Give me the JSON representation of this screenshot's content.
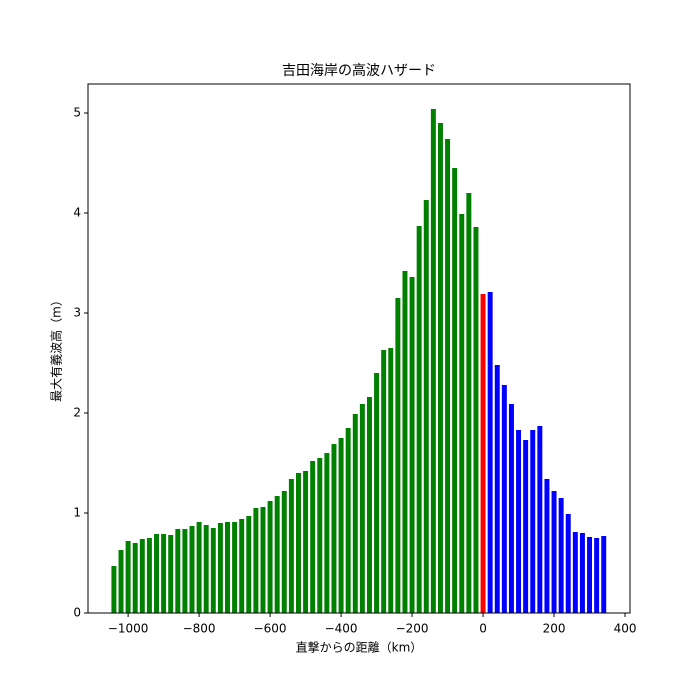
{
  "chart_data": {
    "type": "bar",
    "title": "吉田海岸の高波ハザード",
    "xlabel": "直撃からの距離（km）",
    "ylabel": "最大有義波高（m）",
    "bar_width": 14,
    "series": [
      {
        "color": "#008000",
        "x": [
          -1040,
          -1020,
          -1000,
          -980,
          -960,
          -940,
          -920,
          -900,
          -880,
          -860,
          -840,
          -820,
          -800,
          -780,
          -760,
          -740,
          -720,
          -700,
          -680,
          -660,
          -640,
          -620,
          -600,
          -580,
          -560,
          -540,
          -520,
          -500,
          -480,
          -460,
          -440,
          -420,
          -400,
          -380,
          -360,
          -340,
          -320,
          -300,
          -280,
          -260,
          -240,
          -220,
          -200,
          -180,
          -160,
          -140,
          -120,
          -100,
          -80,
          -60,
          -40,
          -20
        ],
        "values": [
          0.47,
          0.63,
          0.72,
          0.7,
          0.74,
          0.75,
          0.79,
          0.79,
          0.78,
          0.84,
          0.84,
          0.87,
          0.91,
          0.88,
          0.85,
          0.9,
          0.91,
          0.91,
          0.94,
          0.97,
          1.05,
          1.06,
          1.12,
          1.17,
          1.22,
          1.34,
          1.4,
          1.42,
          1.52,
          1.55,
          1.6,
          1.69,
          1.75,
          1.85,
          1.99,
          2.09,
          2.16,
          2.4,
          2.63,
          2.65,
          3.15,
          3.42,
          3.36,
          3.87,
          4.13,
          5.04,
          4.9,
          4.74,
          4.45,
          3.99,
          4.2,
          3.86
        ]
      },
      {
        "color": "#ff0000",
        "x": [
          0
        ],
        "values": [
          3.19
        ]
      },
      {
        "color": "#0000ff",
        "x": [
          20,
          40,
          60,
          80,
          100,
          120,
          140,
          160,
          180,
          200,
          220,
          240,
          260,
          280,
          300,
          320,
          340
        ],
        "values": [
          3.21,
          2.48,
          2.28,
          2.09,
          1.83,
          1.73,
          1.83,
          1.87,
          1.34,
          1.22,
          1.15,
          0.99,
          0.81,
          0.8,
          0.76,
          0.75,
          0.77
        ]
      }
    ],
    "xlim": [
      -1113,
      414
    ],
    "ylim": [
      0,
      5.29
    ],
    "xticks": [
      {
        "value": -1000,
        "label": "−1000"
      },
      {
        "value": -800,
        "label": "−800"
      },
      {
        "value": -600,
        "label": "−600"
      },
      {
        "value": -400,
        "label": "−400"
      },
      {
        "value": -200,
        "label": "−200"
      },
      0,
      200,
      400
    ],
    "yticks": [
      0,
      1,
      2,
      3,
      4,
      5
    ],
    "grid": false
  }
}
